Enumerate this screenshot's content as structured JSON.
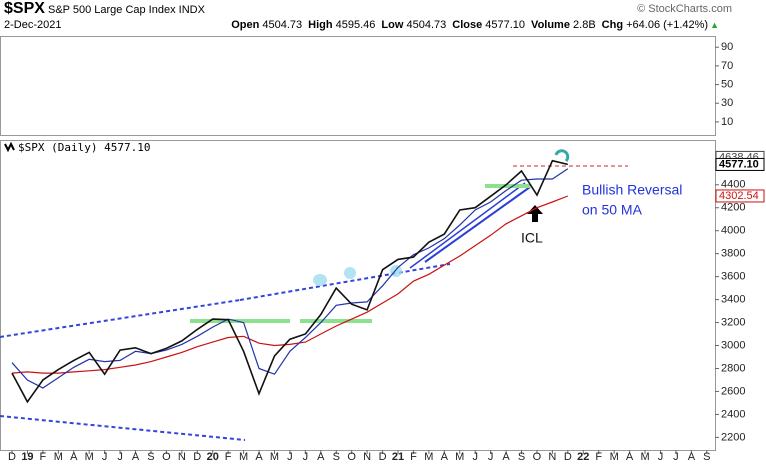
{
  "header": {
    "symbol": "$SPX",
    "name": "S&P 500 Large Cap Index",
    "exchange": "INDX",
    "date": "2-Dec-2021",
    "watermark": "© StockCharts.com",
    "quote": [
      [
        "Open",
        "4504.73"
      ],
      [
        "High",
        "4595.46"
      ],
      [
        "Low",
        "4504.73"
      ],
      [
        "Close",
        "4577.10"
      ],
      [
        "Volume",
        "2.8B"
      ],
      [
        "Chg",
        "+64.06 (+1.42%)"
      ]
    ],
    "direction": "▲"
  },
  "chart_data": [
    {
      "type": "line",
      "ylim": [
        -4,
        102
      ],
      "yticks": [
        10,
        30,
        50,
        70,
        90
      ]
    },
    {
      "type": "line",
      "legend_value": "4577.10",
      "categories": [
        "D",
        "19",
        "F",
        "M",
        "A",
        "M",
        "J",
        "J",
        "A",
        "S",
        "O",
        "N",
        "D",
        "20",
        "F",
        "M",
        "A",
        "M",
        "J",
        "J",
        "A",
        "S",
        "O",
        "N",
        "D",
        "21",
        "F",
        "M",
        "A",
        "M",
        "J",
        "J",
        "A",
        "S",
        "O",
        "N",
        "D",
        "22",
        "F",
        "M",
        "A",
        "M",
        "J",
        "J",
        "A",
        "S"
      ],
      "series": [
        {
          "name": "$SPX (Daily)",
          "color": "#111111",
          "values": [
            2760,
            2510,
            2700,
            2790,
            2870,
            2940,
            2750,
            2960,
            2980,
            2930,
            2975,
            3040,
            3140,
            3230,
            3225,
            2950,
            2580,
            2910,
            3055,
            3100,
            3270,
            3500,
            3360,
            3310,
            3660,
            3750,
            3770,
            3900,
            3970,
            4180,
            4200,
            4300,
            4400,
            4520,
            4310,
            4610,
            4577.1,
            null,
            null,
            null,
            null,
            null,
            null,
            null,
            null,
            null
          ]
        },
        {
          "color": "#2233aa",
          "values": [
            2850,
            2700,
            2630,
            2720,
            2810,
            2880,
            2860,
            2870,
            2950,
            2930,
            2960,
            3010,
            3080,
            3160,
            3230,
            3200,
            2800,
            2750,
            2950,
            3070,
            3200,
            3350,
            3370,
            3380,
            3520,
            3680,
            3790,
            3850,
            3930,
            4050,
            4180,
            4250,
            4350,
            4440,
            4450,
            4450,
            4540,
            null,
            null,
            null,
            null,
            null,
            null,
            null,
            null,
            null
          ]
        },
        {
          "color": "#cc1111",
          "values": [
            2760,
            2770,
            2760,
            2760,
            2770,
            2780,
            2790,
            2810,
            2830,
            2860,
            2900,
            2940,
            2990,
            3030,
            3070,
            3080,
            3020,
            3000,
            3010,
            3030,
            3100,
            3170,
            3230,
            3290,
            3370,
            3450,
            3560,
            3620,
            3700,
            3780,
            3870,
            3960,
            4060,
            4130,
            4200,
            4250,
            4302.54,
            null,
            null,
            null,
            null,
            null,
            null,
            null,
            null,
            null
          ]
        }
      ],
      "ylim": [
        2090,
        4790
      ],
      "yticks": [
        2200,
        2400,
        2600,
        2800,
        3000,
        3200,
        3400,
        3600,
        3800,
        4000,
        4200,
        4400
      ],
      "grid": false,
      "price_labels": [
        {
          "value": 4638.46,
          "label": "4638.46",
          "color": "#444444"
        },
        {
          "value": 4577.1,
          "label": "4577.10",
          "color": "#000000"
        },
        {
          "value": 4302.54,
          "label": "4302.54",
          "color": "#cc1111"
        }
      ],
      "annotations": [
        "Bullish Reversal",
        "on 50 MA",
        "ICL"
      ]
    }
  ]
}
